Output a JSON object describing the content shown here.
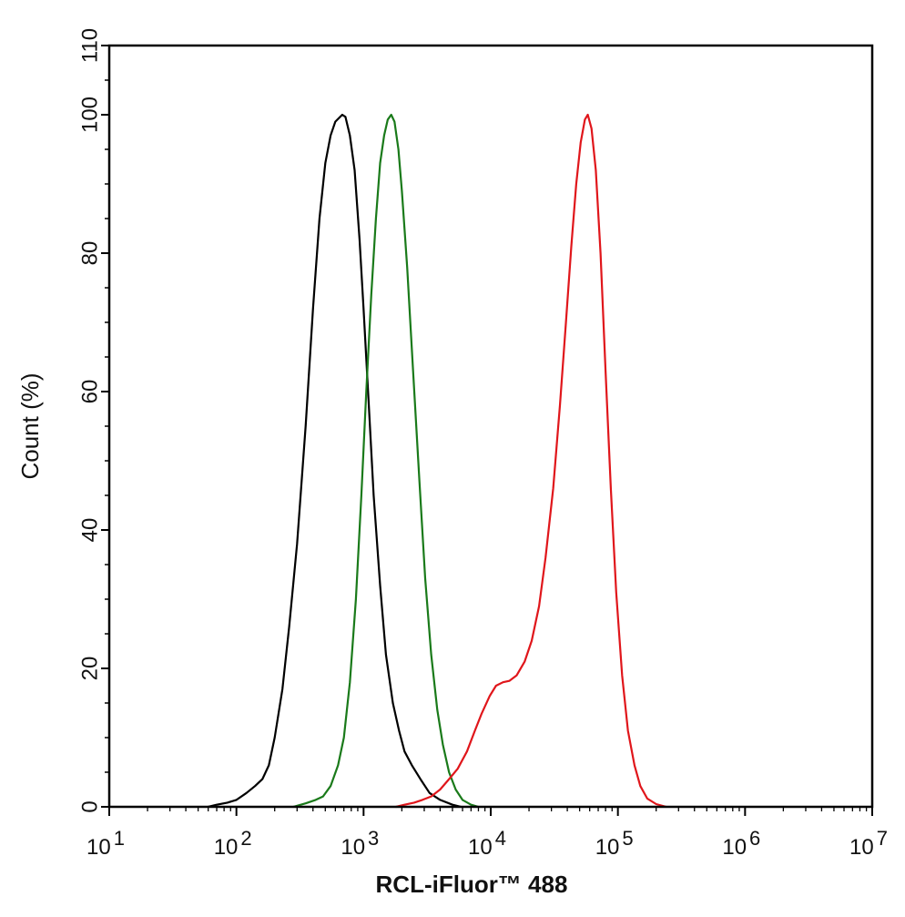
{
  "chart_data": {
    "type": "line",
    "title": "",
    "xlabel": "RCL-iFluor™ 488",
    "ylabel": "Count  (%)",
    "x_scale": "log",
    "xlim": [
      10,
      10000000
    ],
    "ylim": [
      0,
      110
    ],
    "x_ticks": [
      {
        "value": 10,
        "base": "10",
        "exp": "1"
      },
      {
        "value": 100,
        "base": "10",
        "exp": "2"
      },
      {
        "value": 1000,
        "base": "10",
        "exp": "3"
      },
      {
        "value": 10000,
        "base": "10",
        "exp": "4"
      },
      {
        "value": 100000,
        "base": "10",
        "exp": "5"
      },
      {
        "value": 1000000,
        "base": "10",
        "exp": "6"
      },
      {
        "value": 10000000,
        "base": "10",
        "exp": "7"
      }
    ],
    "y_ticks": [
      0,
      20,
      40,
      60,
      80,
      100,
      110
    ],
    "y_tick_labels": [
      "0",
      "20",
      "40",
      "60",
      "80",
      "100",
      "110"
    ],
    "grid": false,
    "legend": false,
    "series": [
      {
        "color": "#000000",
        "points": [
          [
            60,
            0
          ],
          [
            70,
            0.3
          ],
          [
            85,
            0.6
          ],
          [
            100,
            1
          ],
          [
            120,
            2
          ],
          [
            140,
            3
          ],
          [
            160,
            4
          ],
          [
            180,
            6
          ],
          [
            200,
            10
          ],
          [
            230,
            17
          ],
          [
            260,
            26
          ],
          [
            300,
            38
          ],
          [
            350,
            55
          ],
          [
            400,
            72
          ],
          [
            450,
            85
          ],
          [
            500,
            93
          ],
          [
            550,
            97
          ],
          [
            600,
            99
          ],
          [
            680,
            100
          ],
          [
            720,
            99.7
          ],
          [
            780,
            97
          ],
          [
            850,
            92
          ],
          [
            930,
            82
          ],
          [
            1000,
            72
          ],
          [
            1100,
            58
          ],
          [
            1200,
            45
          ],
          [
            1350,
            32
          ],
          [
            1500,
            22
          ],
          [
            1700,
            15
          ],
          [
            1900,
            11
          ],
          [
            2100,
            8
          ],
          [
            2400,
            6
          ],
          [
            2800,
            4
          ],
          [
            3300,
            2
          ],
          [
            4000,
            1
          ],
          [
            5000,
            0.3
          ],
          [
            5800,
            0
          ]
        ]
      },
      {
        "color": "#1a7a1a",
        "points": [
          [
            280,
            0
          ],
          [
            350,
            0.5
          ],
          [
            420,
            1
          ],
          [
            480,
            1.5
          ],
          [
            550,
            3
          ],
          [
            630,
            6
          ],
          [
            700,
            10
          ],
          [
            780,
            18
          ],
          [
            870,
            30
          ],
          [
            960,
            45
          ],
          [
            1050,
            60
          ],
          [
            1150,
            74
          ],
          [
            1250,
            85
          ],
          [
            1350,
            93
          ],
          [
            1450,
            97
          ],
          [
            1550,
            99.3
          ],
          [
            1650,
            100
          ],
          [
            1750,
            99
          ],
          [
            1880,
            95
          ],
          [
            2000,
            89
          ],
          [
            2200,
            78
          ],
          [
            2450,
            63
          ],
          [
            2750,
            47
          ],
          [
            3050,
            33
          ],
          [
            3400,
            22
          ],
          [
            3800,
            14
          ],
          [
            4200,
            9
          ],
          [
            4700,
            5
          ],
          [
            5300,
            2.5
          ],
          [
            6000,
            1
          ],
          [
            7000,
            0.3
          ],
          [
            8000,
            0
          ]
        ]
      },
      {
        "color": "#e0161b",
        "points": [
          [
            1800,
            0
          ],
          [
            2100,
            0.3
          ],
          [
            2500,
            0.6
          ],
          [
            2900,
            1
          ],
          [
            3400,
            1.5
          ],
          [
            4000,
            2.5
          ],
          [
            4700,
            4
          ],
          [
            5500,
            5.5
          ],
          [
            6500,
            8
          ],
          [
            7500,
            11
          ],
          [
            8500,
            13.5
          ],
          [
            9800,
            16
          ],
          [
            11000,
            17.5
          ],
          [
            12500,
            18
          ],
          [
            14000,
            18.2
          ],
          [
            16000,
            19
          ],
          [
            18500,
            21
          ],
          [
            21000,
            24
          ],
          [
            24000,
            29
          ],
          [
            27000,
            36
          ],
          [
            31000,
            46
          ],
          [
            35000,
            58
          ],
          [
            39000,
            70
          ],
          [
            43000,
            81
          ],
          [
            47000,
            90
          ],
          [
            51000,
            96
          ],
          [
            55000,
            99.3
          ],
          [
            58000,
            100
          ],
          [
            62000,
            98
          ],
          [
            67000,
            92
          ],
          [
            73000,
            80
          ],
          [
            80000,
            63
          ],
          [
            88000,
            46
          ],
          [
            97000,
            31
          ],
          [
            108000,
            19
          ],
          [
            120000,
            11
          ],
          [
            135000,
            6
          ],
          [
            150000,
            3
          ],
          [
            170000,
            1.2
          ],
          [
            200000,
            0.4
          ],
          [
            240000,
            0
          ]
        ]
      }
    ]
  }
}
